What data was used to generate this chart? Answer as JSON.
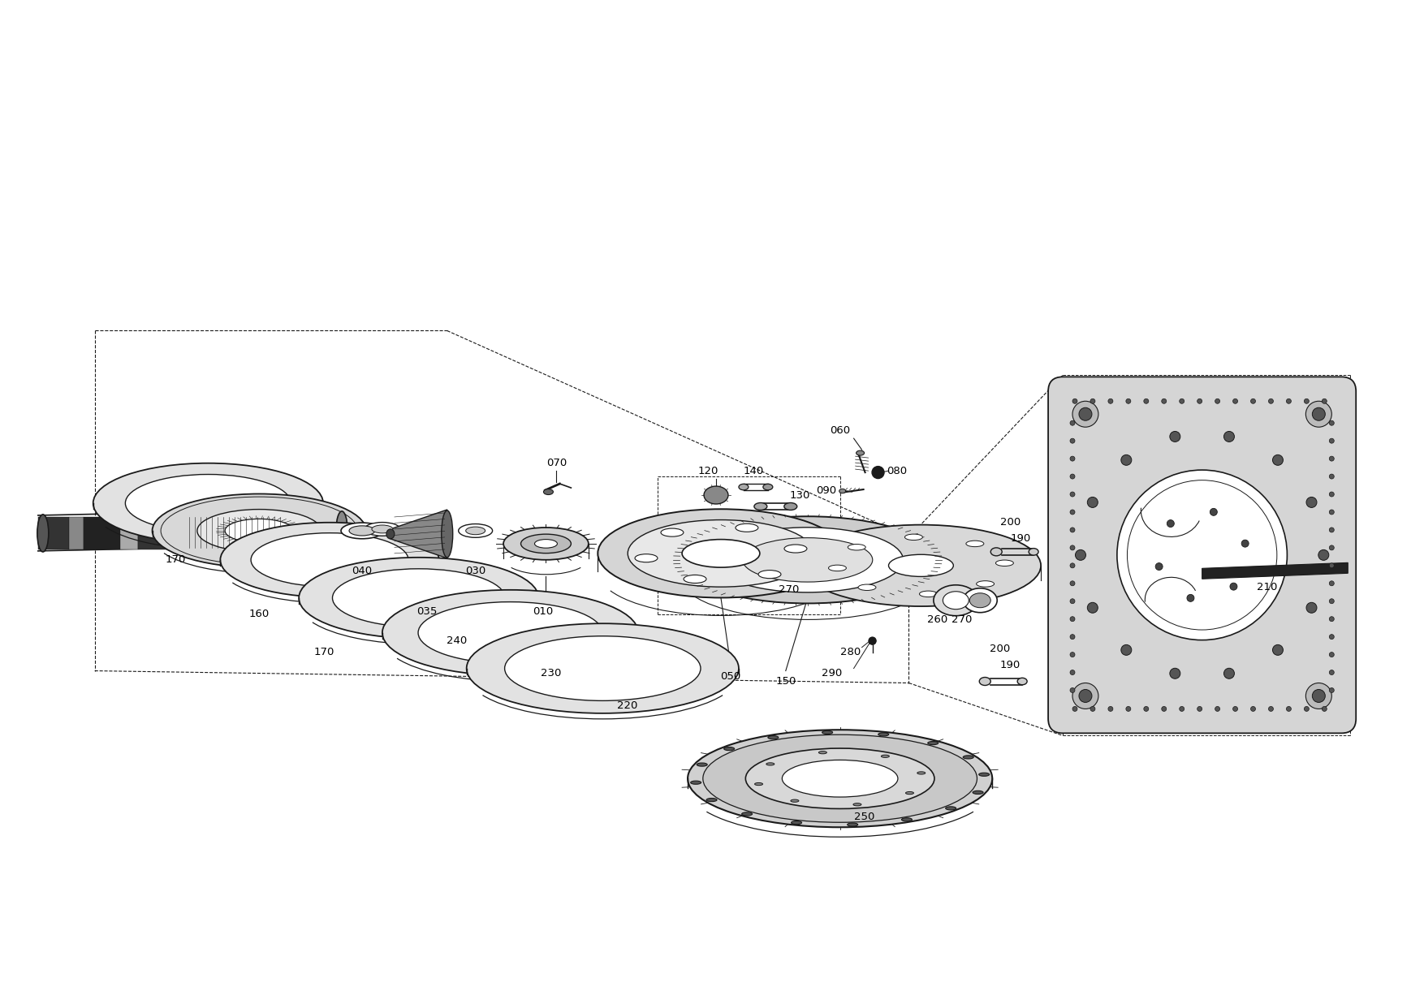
{
  "background_color": "#ffffff",
  "line_color": "#1a1a1a",
  "figsize": [
    17.54,
    12.42
  ],
  "dpi": 100
}
